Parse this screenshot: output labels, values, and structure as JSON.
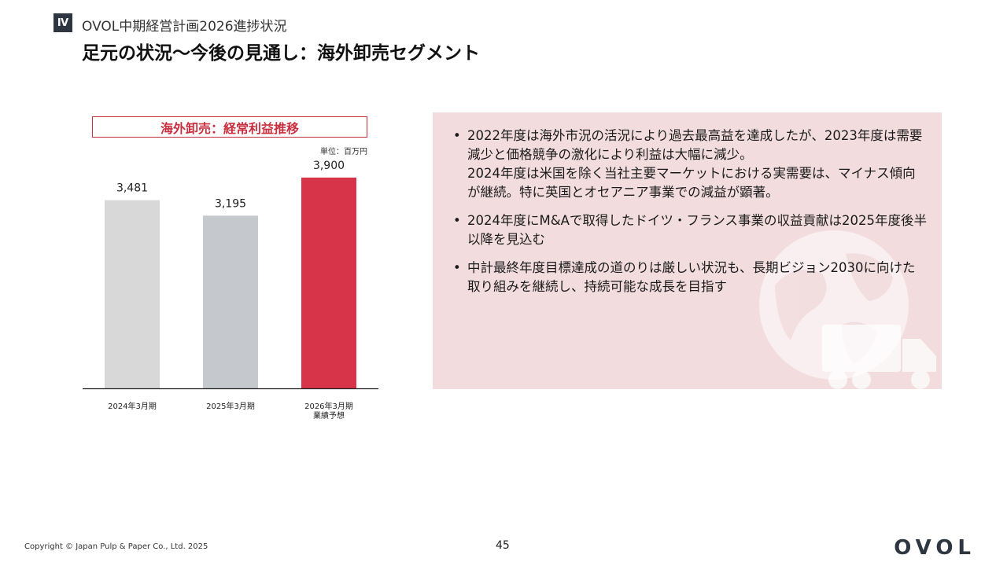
{
  "header": {
    "section_badge": "Ⅳ",
    "breadcrumb": "OVOL中期経営計画2026進捗状況",
    "title": "足元の状況～今後の見通し：海外卸売セグメント"
  },
  "chart_data": {
    "type": "bar",
    "title": "海外卸売：経常利益推移",
    "unit": "単位：百万円",
    "categories": [
      "2024年3月期",
      "2025年3月期",
      "2026年3月期\n業績予想"
    ],
    "values": [
      3481,
      3195,
      3900
    ],
    "value_labels": [
      "3,481",
      "3,195",
      "3,900"
    ],
    "colors": [
      "#d8d8d8",
      "#c5c8cc",
      "#d7344a"
    ],
    "ylim": [
      0,
      4800
    ],
    "grid": false,
    "legend": "none"
  },
  "info_panel": {
    "bullet_symbol": "•",
    "bullets": [
      "2022年度は海外市況の活況により過去最高益を達成したが、2023年度は需要減少と価格競争の激化により利益は大幅に減少。\n2024年度は米国を除く当社主要マーケットにおける実需要は、マイナス傾向が継続。特に英国とオセアニア事業での減益が顕著。",
      "2024年度にM&Aで取得したドイツ・フランス事業の収益貢献は2025年度後半以降を見込む",
      "中計最終年度目標達成の道のりは厳しい状況も、長期ビジョン2030に向けた取り組みを継続し、持続可能な成長を目指す"
    ],
    "background": "#f2dcde"
  },
  "footer": {
    "page_number": "45",
    "copyright": "Copyright © Japan Pulp & Paper Co., Ltd. 2025",
    "logo": "OVOL"
  }
}
